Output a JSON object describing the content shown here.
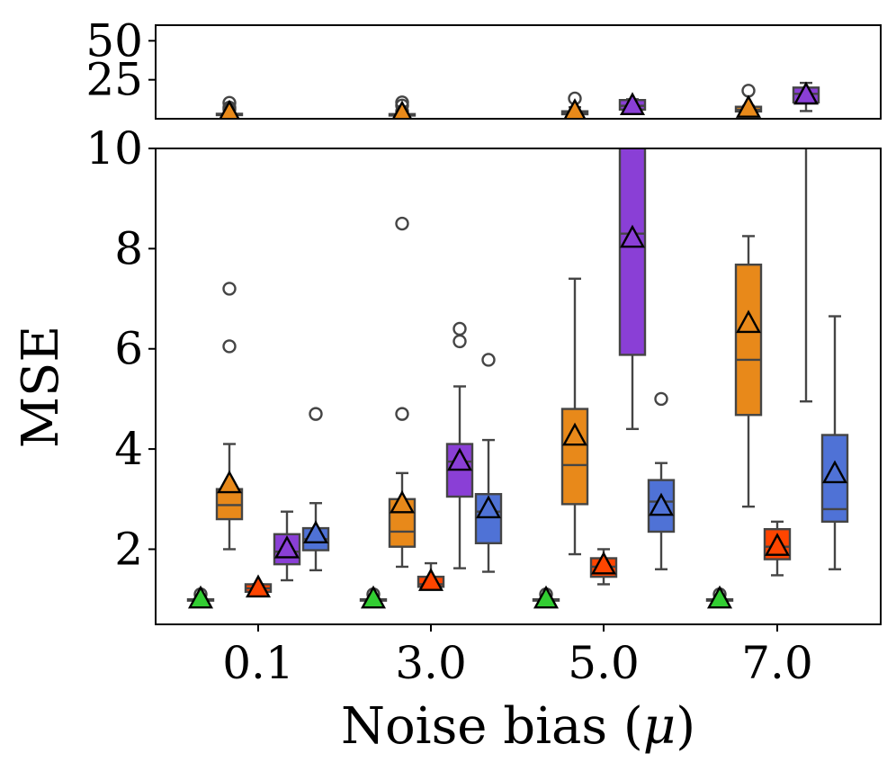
{
  "chart_data": {
    "type": "box",
    "title": "",
    "xlabel": "Noise bias (",
    "xlabel_symbol": "μ",
    "xlabel_close": ")",
    "ylabel": "MSE",
    "categories": [
      "0.1",
      "3.0",
      "5.0",
      "7.0"
    ],
    "top_panel": {
      "ylim": [
        0,
        60
      ],
      "yticks": [
        "25",
        "50"
      ],
      "ytick_values": [
        25,
        50
      ],
      "visible_from": 9
    },
    "bottom_panel": {
      "ylim": [
        0.5,
        10
      ],
      "yticks": [
        "2",
        "4",
        "6",
        "8",
        "10"
      ],
      "ytick_values": [
        2,
        4,
        6,
        8,
        10
      ]
    },
    "series": [
      {
        "name": "green",
        "color": "#32cd32",
        "boxes": [
          {
            "min": 1.0,
            "q1": 1.0,
            "median": 1.0,
            "q3": 1.0,
            "max": 1.0,
            "mean": 1.0,
            "outliers": [
              1.1
            ]
          },
          {
            "min": 1.0,
            "q1": 1.0,
            "median": 1.0,
            "q3": 1.0,
            "max": 1.0,
            "mean": 1.0,
            "outliers": [
              1.1
            ]
          },
          {
            "min": 1.0,
            "q1": 1.0,
            "median": 1.0,
            "q3": 1.0,
            "max": 1.0,
            "mean": 1.0,
            "outliers": [
              1.1
            ]
          },
          {
            "min": 1.0,
            "q1": 1.0,
            "median": 1.0,
            "q3": 1.0,
            "max": 1.0,
            "mean": 1.0,
            "outliers": [
              1.1
            ]
          }
        ]
      },
      {
        "name": "orange",
        "color": "#e8891a",
        "boxes": [
          {
            "min": 2.0,
            "q1": 2.6,
            "median": 2.88,
            "q3": 3.2,
            "max": 4.1,
            "mean": 3.3,
            "outliers": [
              6.05,
              7.2,
              10.2
            ]
          },
          {
            "min": 1.65,
            "q1": 2.05,
            "median": 2.35,
            "q3": 3.0,
            "max": 3.52,
            "mean": 2.9,
            "outliers": [
              4.7,
              8.5,
              10.5
            ]
          },
          {
            "min": 1.9,
            "q1": 2.9,
            "median": 3.68,
            "q3": 4.8,
            "max": 7.4,
            "mean": 4.25,
            "outliers": [
              13.0
            ]
          },
          {
            "min": 2.85,
            "q1": 4.68,
            "median": 5.78,
            "q3": 7.68,
            "max": 8.25,
            "mean": 6.5,
            "outliers": [
              18.0
            ]
          }
        ]
      },
      {
        "name": "red",
        "color": "#ff4500",
        "boxes": [
          {
            "min": 1.15,
            "q1": 1.15,
            "median": 1.22,
            "q3": 1.3,
            "max": 1.3,
            "mean": 1.22,
            "outliers": []
          },
          {
            "min": 1.22,
            "q1": 1.25,
            "median": 1.3,
            "q3": 1.45,
            "max": 1.72,
            "mean": 1.35,
            "outliers": []
          },
          {
            "min": 1.3,
            "q1": 1.45,
            "median": 1.65,
            "q3": 1.82,
            "max": 2.0,
            "mean": 1.68,
            "outliers": []
          },
          {
            "min": 1.48,
            "q1": 1.8,
            "median": 2.05,
            "q3": 2.4,
            "max": 2.55,
            "mean": 2.05,
            "outliers": []
          }
        ]
      },
      {
        "name": "purple",
        "color": "#8a3fd6",
        "boxes": [
          {
            "min": 1.38,
            "q1": 1.7,
            "median": 1.95,
            "q3": 2.3,
            "max": 2.75,
            "mean": 2.0,
            "outliers": []
          },
          {
            "min": 1.62,
            "q1": 3.05,
            "median": 3.75,
            "q3": 4.1,
            "max": 5.25,
            "mean": 3.75,
            "outliers": [
              6.15,
              6.4
            ]
          },
          {
            "min": 4.4,
            "q1": 5.88,
            "median": 8.3,
            "q3": 12.0,
            "max": 12.5,
            "mean": 8.2,
            "outliers": []
          },
          {
            "min": 4.95,
            "q1": 10.5,
            "median": 16.0,
            "q3": 20.0,
            "max": 23.0,
            "mean": 15.0,
            "outliers": []
          }
        ]
      },
      {
        "name": "blue",
        "color": "#4f72d6",
        "boxes": [
          {
            "min": 1.58,
            "q1": 1.98,
            "median": 2.2,
            "q3": 2.42,
            "max": 2.92,
            "mean": 2.3,
            "outliers": [
              4.7
            ]
          },
          {
            "min": 1.55,
            "q1": 2.12,
            "median": 2.75,
            "q3": 3.1,
            "max": 4.18,
            "mean": 2.8,
            "outliers": [
              5.78
            ]
          },
          {
            "min": 1.6,
            "q1": 2.35,
            "median": 2.95,
            "q3": 3.38,
            "max": 3.72,
            "mean": 2.85,
            "outliers": [
              5.0
            ]
          },
          {
            "min": 1.6,
            "q1": 2.55,
            "median": 2.8,
            "q3": 4.28,
            "max": 6.65,
            "mean": 3.5,
            "outliers": []
          }
        ]
      }
    ]
  }
}
